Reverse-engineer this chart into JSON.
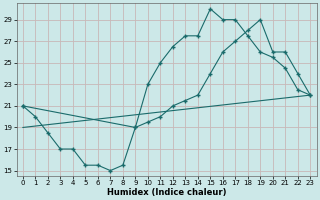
{
  "title": "",
  "xlabel": "Humidex (Indice chaleur)",
  "ylabel": "",
  "bg_color": "#cce8e8",
  "grid_color": "#c8b8b8",
  "line_color": "#1a6b6b",
  "xlim": [
    -0.5,
    23.5
  ],
  "ylim": [
    14.5,
    30.5
  ],
  "xticks": [
    0,
    1,
    2,
    3,
    4,
    5,
    6,
    7,
    8,
    9,
    10,
    11,
    12,
    13,
    14,
    15,
    16,
    17,
    18,
    19,
    20,
    21,
    22,
    23
  ],
  "yticks": [
    15,
    17,
    19,
    21,
    23,
    25,
    27,
    29
  ],
  "line1_x": [
    0,
    1,
    2,
    3,
    4,
    5,
    6,
    7,
    8,
    9,
    10,
    11,
    12,
    13,
    14,
    15,
    16,
    17,
    18,
    19,
    20,
    21,
    22,
    23
  ],
  "line1_y": [
    21,
    20,
    18.5,
    17,
    17,
    15.5,
    15.5,
    15,
    15.5,
    19,
    23,
    25,
    26.5,
    27.5,
    27.5,
    30,
    29,
    29,
    27.5,
    26,
    25.5,
    24.5,
    22.5,
    22
  ],
  "line2_x": [
    0,
    9,
    10,
    11,
    12,
    13,
    14,
    15,
    16,
    17,
    18,
    19,
    20,
    21,
    22,
    23
  ],
  "line2_y": [
    21,
    19,
    19.5,
    20,
    21,
    21.5,
    22,
    24,
    26,
    27,
    28,
    29,
    26,
    26,
    24,
    22
  ],
  "line3_x": [
    0,
    23
  ],
  "line3_y": [
    19,
    22
  ]
}
